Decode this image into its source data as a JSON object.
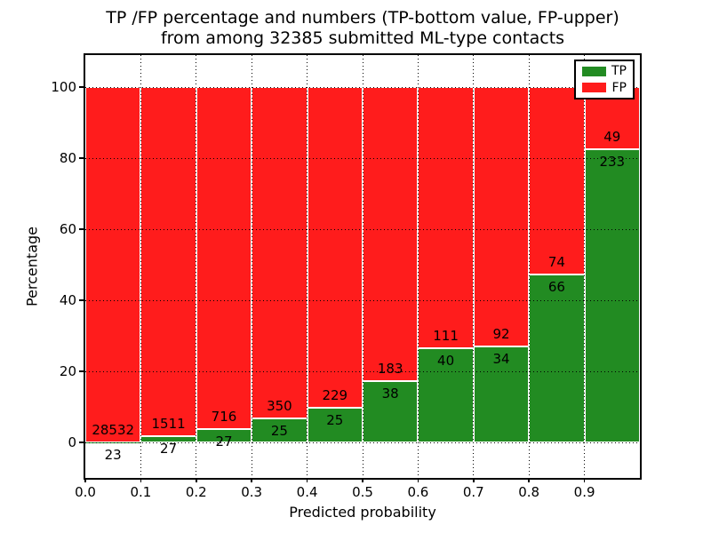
{
  "chart_data": {
    "type": "bar",
    "stacked": true,
    "title_line1": "TP /FP percentage and numbers (TP-bottom value, FP-upper)",
    "title_line2": "from among 32385 submitted ML-type contacts",
    "xlabel": "Predicted probability",
    "ylabel": "Percentage",
    "total_contacts": 32385,
    "bins": [
      "0.0-0.1",
      "0.1-0.2",
      "0.2-0.3",
      "0.3-0.4",
      "0.4-0.5",
      "0.5-0.6",
      "0.6-0.7",
      "0.7-0.8",
      "0.8-0.9",
      "0.9-1.0"
    ],
    "series": [
      {
        "name": "TP",
        "color": "#228b22",
        "counts": [
          23,
          27,
          27,
          25,
          25,
          38,
          40,
          34,
          66,
          233
        ],
        "pct": [
          0.08,
          1.76,
          3.63,
          6.67,
          9.84,
          17.19,
          26.49,
          26.98,
          47.14,
          82.62
        ]
      },
      {
        "name": "FP",
        "color": "#ff1c1c",
        "counts": [
          28532,
          1511,
          716,
          350,
          229,
          183,
          111,
          92,
          74,
          49
        ],
        "pct": [
          99.92,
          98.24,
          96.37,
          93.33,
          90.16,
          82.81,
          73.51,
          73.02,
          52.86,
          17.38
        ]
      }
    ],
    "xticks": [
      "0.0",
      "0.1",
      "0.2",
      "0.3",
      "0.4",
      "0.5",
      "0.6",
      "0.7",
      "0.8",
      "0.9"
    ],
    "yticks": [
      "0",
      "20",
      "40",
      "60",
      "80",
      "100"
    ],
    "xlim": [
      0.0,
      1.0
    ],
    "ylim": [
      -10,
      109
    ],
    "grid": "dotted",
    "bar_edge_color": "#ffffff",
    "legend": {
      "position": "upper right",
      "entries": [
        {
          "label": "TP",
          "color": "#228b22"
        },
        {
          "label": "FP",
          "color": "#ff1c1c"
        }
      ]
    }
  }
}
